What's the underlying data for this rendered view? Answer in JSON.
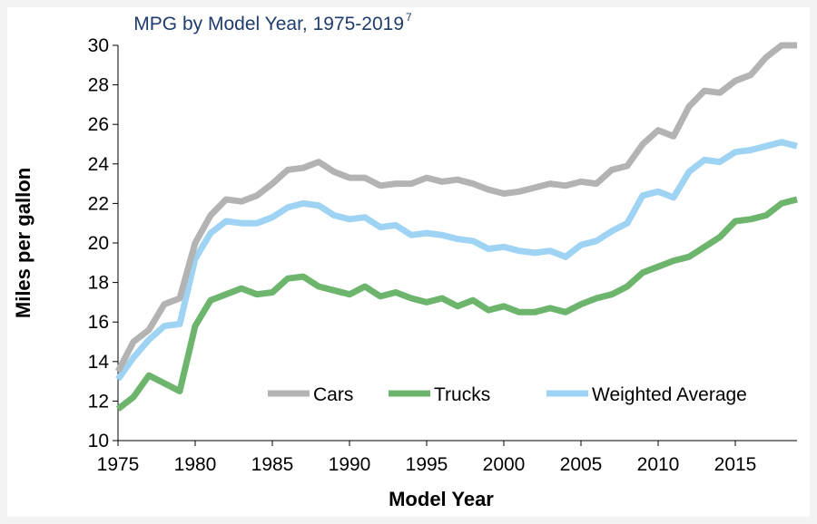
{
  "chart_data": {
    "type": "line",
    "title": "MPG by Model Year, 1975-2019",
    "title_superscript": "7",
    "xlabel": "Model Year",
    "ylabel": "Miles per gallon",
    "xlim": [
      1975,
      2019
    ],
    "ylim": [
      10,
      30
    ],
    "x_ticks": [
      "1975",
      "1980",
      "1985",
      "1990",
      "1995",
      "2000",
      "2005",
      "2010",
      "2015"
    ],
    "y_ticks": [
      "10",
      "12",
      "14",
      "16",
      "18",
      "20",
      "22",
      "24",
      "26",
      "28",
      "30"
    ],
    "grid": false,
    "legend_position": "bottom-right",
    "x": [
      1975,
      1976,
      1977,
      1978,
      1979,
      1980,
      1981,
      1982,
      1983,
      1984,
      1985,
      1986,
      1987,
      1988,
      1989,
      1990,
      1991,
      1992,
      1993,
      1994,
      1995,
      1996,
      1997,
      1998,
      1999,
      2000,
      2001,
      2002,
      2003,
      2004,
      2005,
      2006,
      2007,
      2008,
      2009,
      2010,
      2011,
      2012,
      2013,
      2014,
      2015,
      2016,
      2017,
      2018,
      2019
    ],
    "series": [
      {
        "name": "Cars",
        "color": "#b3b3b3",
        "values": [
          13.5,
          15.0,
          15.6,
          16.9,
          17.2,
          20.0,
          21.4,
          22.2,
          22.1,
          22.4,
          23.0,
          23.7,
          23.8,
          24.1,
          23.6,
          23.3,
          23.3,
          22.9,
          23.0,
          23.0,
          23.3,
          23.1,
          23.2,
          23.0,
          22.7,
          22.5,
          22.6,
          22.8,
          23.0,
          22.9,
          23.1,
          23.0,
          23.7,
          23.9,
          25.0,
          25.7,
          25.4,
          26.9,
          27.7,
          27.6,
          28.2,
          28.5,
          29.4,
          30.0,
          30.0
        ]
      },
      {
        "name": "Trucks",
        "color": "#6db56d",
        "values": [
          11.6,
          12.2,
          13.3,
          12.9,
          12.5,
          15.8,
          17.1,
          17.4,
          17.7,
          17.4,
          17.5,
          18.2,
          18.3,
          17.8,
          17.6,
          17.4,
          17.8,
          17.3,
          17.5,
          17.2,
          17.0,
          17.2,
          16.8,
          17.1,
          16.6,
          16.8,
          16.5,
          16.5,
          16.7,
          16.5,
          16.9,
          17.2,
          17.4,
          17.8,
          18.5,
          18.8,
          19.1,
          19.3,
          19.8,
          20.3,
          21.1,
          21.2,
          21.4,
          22.0,
          22.2
        ]
      },
      {
        "name": "Weighted Average",
        "color": "#9ed3f3",
        "values": [
          13.1,
          14.2,
          15.1,
          15.8,
          15.9,
          19.2,
          20.5,
          21.1,
          21.0,
          21.0,
          21.3,
          21.8,
          22.0,
          21.9,
          21.4,
          21.2,
          21.3,
          20.8,
          20.9,
          20.4,
          20.5,
          20.4,
          20.2,
          20.1,
          19.7,
          19.8,
          19.6,
          19.5,
          19.6,
          19.3,
          19.9,
          20.1,
          20.6,
          21.0,
          22.4,
          22.6,
          22.3,
          23.6,
          24.2,
          24.1,
          24.6,
          24.7,
          24.9,
          25.1,
          24.9
        ]
      }
    ]
  }
}
